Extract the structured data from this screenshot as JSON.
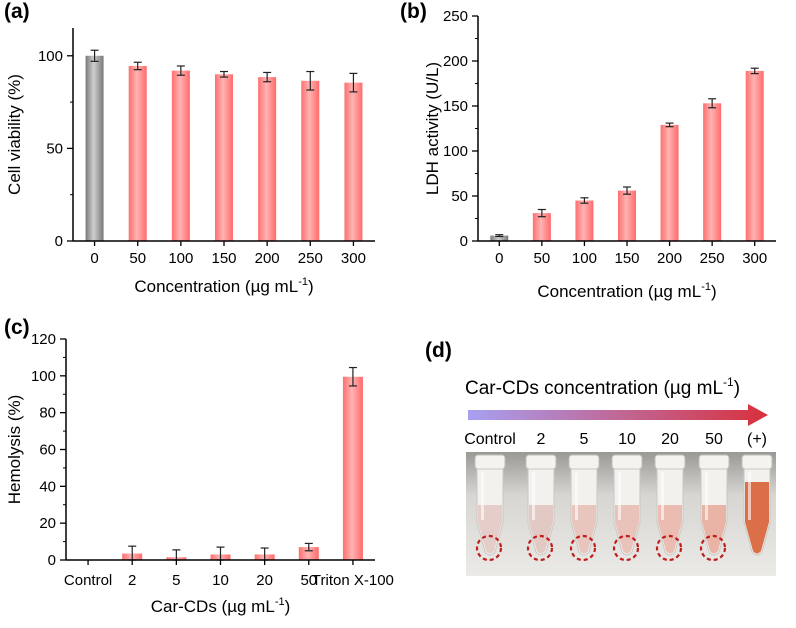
{
  "chart_data": [
    {
      "id": "a",
      "type": "bar",
      "panel_label": "(a)",
      "categories": [
        "0",
        "50",
        "100",
        "150",
        "200",
        "250",
        "300"
      ],
      "values": [
        100,
        94.5,
        92,
        90,
        88.5,
        86.5,
        85.5
      ],
      "errors": [
        3,
        2,
        2.5,
        1.5,
        2.5,
        5,
        5
      ],
      "bar_colors": [
        "#9c9c9c",
        "#ff8585",
        "#ff8585",
        "#ff8585",
        "#ff8585",
        "#ff8585",
        "#ff8585"
      ],
      "xlabel": "Concentration (µg mL",
      "xlabel_sup": "-1",
      "xlabel_end": ")",
      "ylabel": "Cell viability (%)",
      "ylim": [
        0,
        115
      ],
      "yticks": [
        0,
        50,
        100
      ],
      "grid": false
    },
    {
      "id": "b",
      "type": "bar",
      "panel_label": "(b)",
      "categories": [
        "0",
        "50",
        "100",
        "150",
        "200",
        "250",
        "300"
      ],
      "values": [
        6,
        31,
        45,
        56,
        129,
        153,
        189
      ],
      "errors": [
        1,
        4,
        3,
        4,
        2,
        5,
        3
      ],
      "bar_colors": [
        "#9c9c9c",
        "#ff8585",
        "#ff8585",
        "#ff8585",
        "#ff8585",
        "#ff8585",
        "#ff8585"
      ],
      "xlabel": "Concentration (µg mL",
      "xlabel_sup": "-1",
      "xlabel_end": ")",
      "ylabel": "LDH activity (U/L)",
      "ylim": [
        0,
        250
      ],
      "yticks": [
        0,
        50,
        100,
        150,
        200,
        250
      ],
      "grid": false
    },
    {
      "id": "c",
      "type": "bar",
      "panel_label": "(c)",
      "categories": [
        "Control",
        "2",
        "5",
        "10",
        "20",
        "50",
        "Triton X-100"
      ],
      "values": [
        0,
        3.5,
        1.5,
        3,
        3,
        7,
        99.5
      ],
      "errors": [
        0,
        4,
        4,
        4,
        3.5,
        2,
        5
      ],
      "bar_colors": [
        "#ff8585",
        "#ff8585",
        "#ff8585",
        "#ff8585",
        "#ff8585",
        "#ff8585",
        "#ff8585"
      ],
      "xlabel": "Car-CDs (µg mL",
      "xlabel_sup": "-1",
      "xlabel_end": ")",
      "ylabel": "Hemolysis (%)",
      "ylim": [
        0,
        120
      ],
      "yticks": [
        0,
        20,
        40,
        60,
        80,
        100,
        120
      ],
      "grid": false
    }
  ],
  "photo": {
    "panel_label": "(d)",
    "title": "Car-CDs concentration (µg mL",
    "title_sup": "-1",
    "title_end": ")",
    "tube_labels": [
      "Control",
      "2",
      "5",
      "10",
      "20",
      "50",
      "(+)"
    ],
    "tube_colors": [
      "#e3c7c2",
      "#e1c2bb",
      "#e6bdb4",
      "#e8baaf",
      "#eab3a6",
      "#e8a898",
      "#d9683e"
    ],
    "arrow_start_color": "#a7a0f2",
    "arrow_end_color": "#d8303c",
    "circle_color": "#c11d1d"
  }
}
